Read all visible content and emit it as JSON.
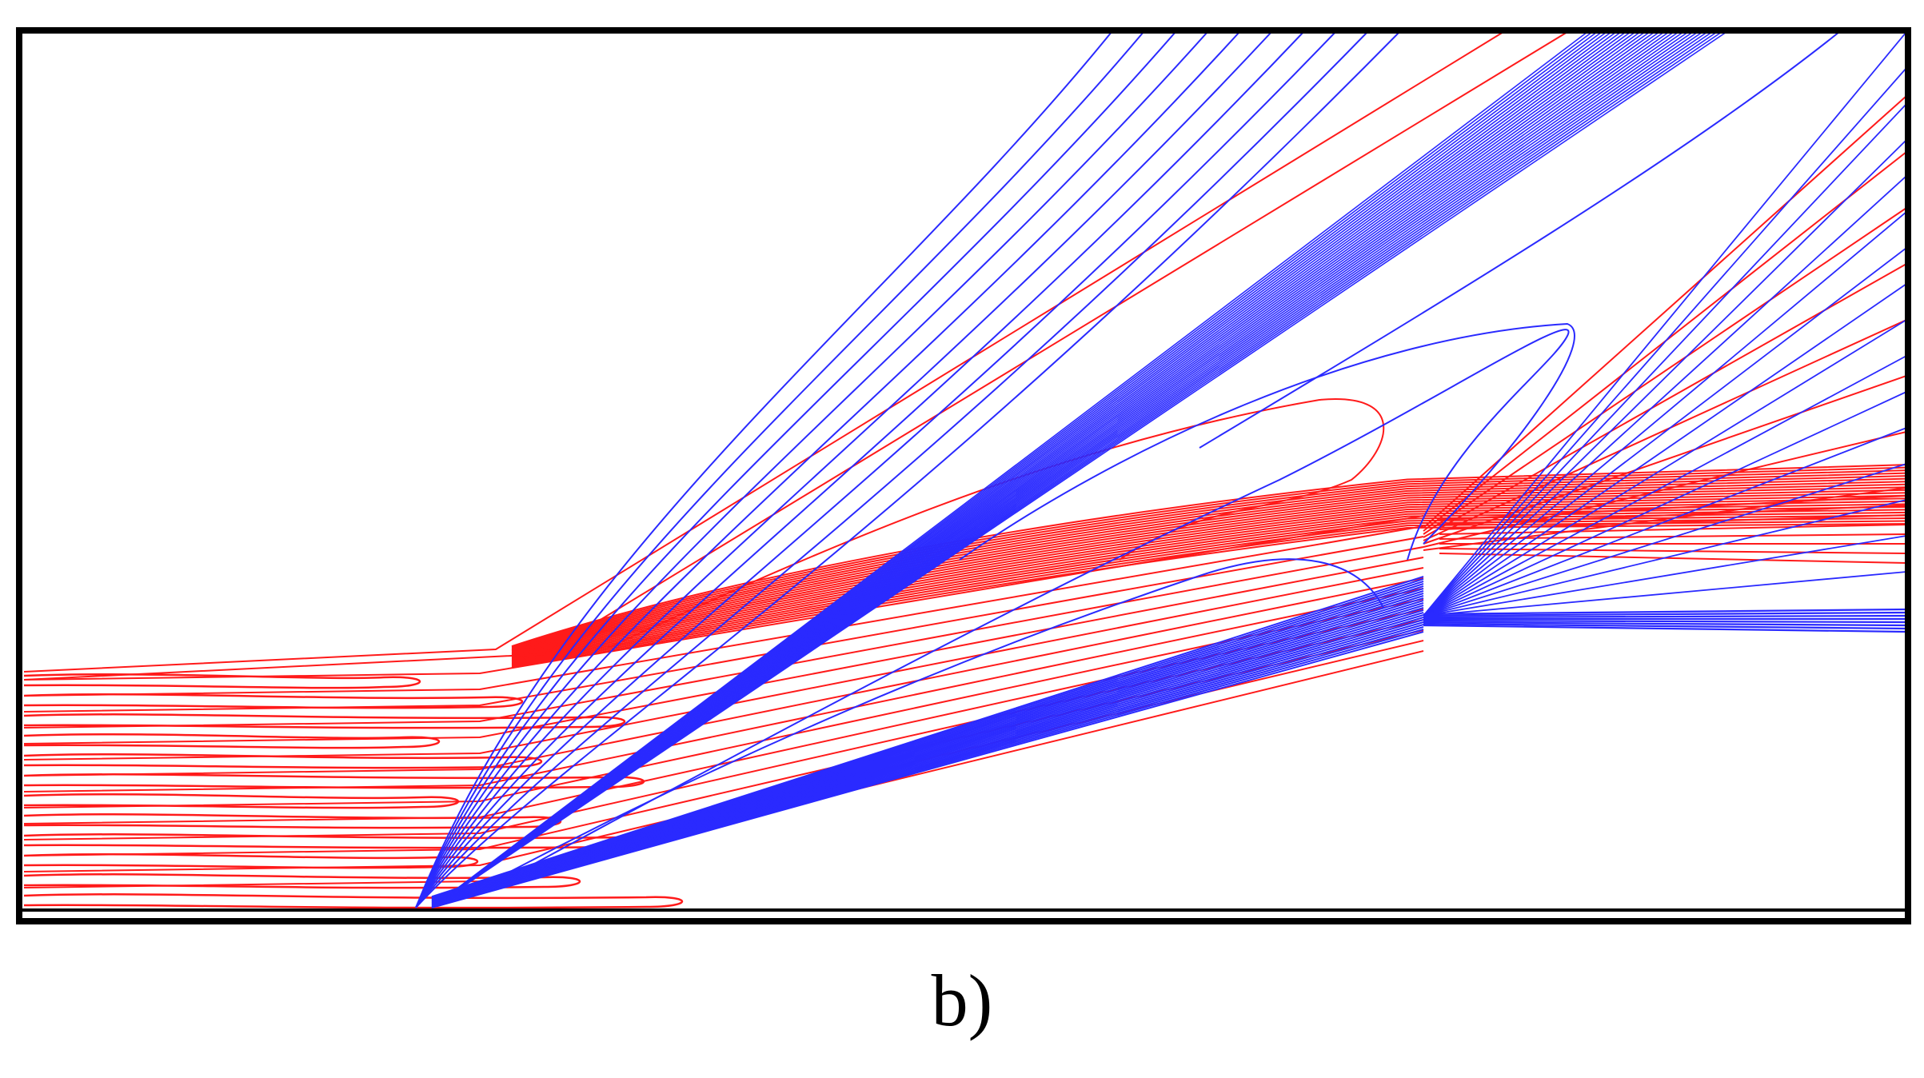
{
  "figure": {
    "panel_label": "b)",
    "colors": {
      "frame": "#000000",
      "contour_red": "#ff1a1a",
      "contour_blue": "#2a2aff",
      "background": "#ffffff"
    }
  }
}
